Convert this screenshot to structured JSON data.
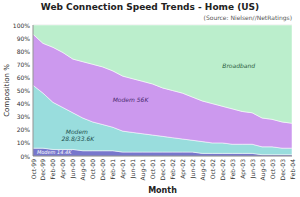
{
  "chart_data": {
    "type": "area",
    "stacked": true,
    "title": "Web Connection Speed Trends - Home (US)",
    "annotations": [
      "(Source: Nielsen//NetRatings)"
    ],
    "xlabel": "Month",
    "ylabel": "Composition %",
    "categories": [
      "Oct-99",
      "Dec-99",
      "Feb-00",
      "Apr-00",
      "Jun-00",
      "Aug-00",
      "Oct-00",
      "Dec-00",
      "Feb-01",
      "Apr-01",
      "Jun-01",
      "Aug-01",
      "Oct-01",
      "Dec-01",
      "Feb-02",
      "Apr-02",
      "Jun-02",
      "Aug-02",
      "Oct-02",
      "Dec-02",
      "Feb-03",
      "Apr-03",
      "Jun-03",
      "Aug-03",
      "Oct-03",
      "Dec-03",
      "Feb-04"
    ],
    "series": [
      {
        "name": "Modem 14.4K",
        "color": "#7777cc",
        "values": [
          6,
          6,
          5,
          5,
          5,
          4,
          4,
          4,
          4,
          3,
          3,
          3,
          3,
          3,
          3,
          3,
          3,
          2,
          2,
          2,
          2,
          2,
          2,
          1,
          1,
          1,
          1
        ]
      },
      {
        "name": "Modem 28.8/33.6K",
        "color": "#99dddd",
        "values": [
          48,
          42,
          36,
          32,
          28,
          25,
          22,
          20,
          18,
          16,
          15,
          14,
          13,
          12,
          11,
          10,
          9,
          9,
          8,
          8,
          7,
          7,
          7,
          6,
          6,
          5,
          5
        ]
      },
      {
        "name": "Modem 56K",
        "color": "#cc99ee",
        "values": [
          39,
          38,
          42,
          42,
          41,
          43,
          44,
          44,
          43,
          42,
          41,
          40,
          39,
          37,
          36,
          35,
          33,
          31,
          30,
          28,
          27,
          25,
          24,
          22,
          21,
          20,
          19
        ]
      },
      {
        "name": "Broadband",
        "color": "#bbeecc",
        "values": [
          7,
          14,
          17,
          21,
          26,
          28,
          30,
          32,
          35,
          39,
          41,
          43,
          45,
          48,
          50,
          52,
          55,
          58,
          60,
          62,
          64,
          66,
          67,
          71,
          72,
          74,
          75
        ]
      }
    ],
    "ylim": [
      0,
      100
    ],
    "yticks": [
      {
        "value": 0,
        "label": "0%"
      },
      {
        "value": 10,
        "label": "10%"
      },
      {
        "value": 20,
        "label": "20%"
      },
      {
        "value": 30,
        "label": "30%"
      },
      {
        "value": 40,
        "label": "40%"
      },
      {
        "value": 50,
        "label": "50%"
      },
      {
        "value": 60,
        "label": "60%"
      },
      {
        "value": 70,
        "label": "70%"
      },
      {
        "value": 80,
        "label": "80%"
      },
      {
        "value": 90,
        "label": "90%"
      },
      {
        "value": 100,
        "label": "100%"
      }
    ],
    "grid": true
  }
}
